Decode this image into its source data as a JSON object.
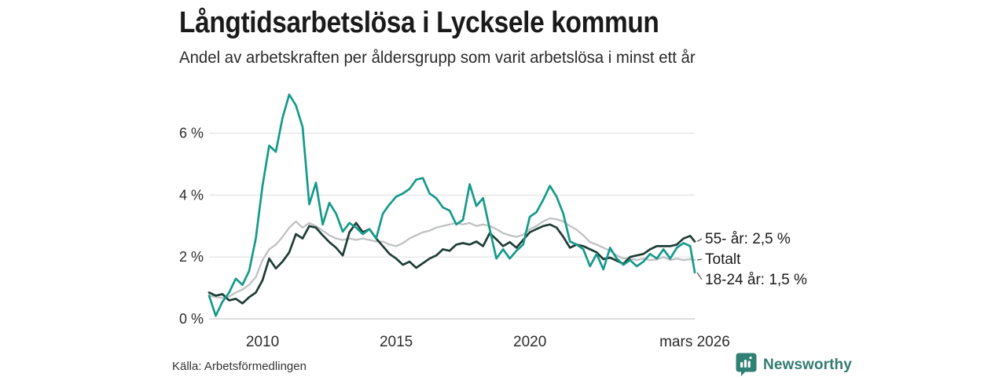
{
  "header": {
    "title": "Långtidsarbetslösa i Lycksele kommun",
    "subtitle": "Andel av arbetskraften per åldersgrupp som varit arbetslösa i minst ett år"
  },
  "footer": {
    "source": "Källa: Arbetsförmedlingen",
    "brand": "Newsworthy"
  },
  "colors": {
    "teal_line": "#159a8a",
    "dark_line": "#1e3d36",
    "gray_line": "#bfc1c3",
    "grid": "#e3e3e3",
    "zero_line": "#c9c9c9",
    "tick_text": "#2b2b2b",
    "label_text": "#1a1a1a",
    "connector": "#404040",
    "brand_teal": "#2f8173"
  },
  "chart_data": {
    "type": "line",
    "x_start": 2008.0,
    "x_step": 0.25,
    "x_end": 2026.17,
    "xlim": [
      2008.0,
      2026.17
    ],
    "ylim": [
      0,
      7.45
    ],
    "grid": true,
    "legend_position": "right-end-labels",
    "y_ticks": [
      {
        "v": 0,
        "label": "0 %"
      },
      {
        "v": 2,
        "label": "2 %"
      },
      {
        "v": 4,
        "label": "4 %"
      },
      {
        "v": 6,
        "label": "6 %"
      }
    ],
    "x_ticks": [
      {
        "v": 2010,
        "label": "2010"
      },
      {
        "v": 2015,
        "label": "2015"
      },
      {
        "v": 2020,
        "label": "2020"
      },
      {
        "v": 2026.17,
        "label": "mars 2026"
      }
    ],
    "series": [
      {
        "name": "Totalt",
        "color_key": "gray_line",
        "end_label": "Totalt",
        "end_value": 1.9,
        "stroke_width": 2.3,
        "values": [
          0.75,
          0.7,
          0.68,
          0.72,
          0.85,
          0.95,
          1.1,
          1.35,
          1.9,
          2.25,
          2.4,
          2.65,
          2.95,
          3.15,
          2.95,
          3.1,
          3.0,
          2.85,
          2.7,
          2.6,
          2.55,
          2.6,
          2.55,
          2.6,
          2.55,
          2.5,
          2.5,
          2.4,
          2.35,
          2.45,
          2.6,
          2.7,
          2.8,
          2.85,
          2.95,
          3.0,
          3.05,
          3.1,
          3.05,
          3.1,
          3.0,
          3.05,
          3.0,
          2.9,
          2.77,
          2.7,
          2.65,
          2.72,
          2.9,
          3.0,
          3.15,
          3.25,
          3.22,
          3.15,
          3.0,
          2.88,
          2.7,
          2.48,
          2.4,
          2.3,
          2.2,
          2.05,
          1.95,
          1.95,
          1.9,
          1.95,
          1.9,
          1.92,
          2.0,
          1.9,
          1.95,
          1.9,
          1.93,
          1.9
        ]
      },
      {
        "name": "55- år",
        "color_key": "dark_line",
        "end_label": "55- år: 2,5 %",
        "end_value": 2.5,
        "stroke_width": 2.7,
        "values": [
          0.85,
          0.75,
          0.8,
          0.6,
          0.65,
          0.5,
          0.7,
          0.85,
          1.25,
          1.95,
          1.63,
          1.85,
          2.15,
          2.74,
          2.6,
          3.0,
          2.95,
          2.7,
          2.48,
          2.3,
          2.05,
          2.8,
          3.1,
          2.8,
          2.9,
          2.6,
          2.35,
          2.1,
          1.95,
          1.75,
          1.85,
          1.65,
          1.8,
          1.95,
          2.05,
          2.25,
          2.2,
          2.4,
          2.45,
          2.4,
          2.5,
          2.35,
          2.77,
          2.57,
          2.35,
          2.48,
          2.3,
          2.55,
          2.8,
          2.9,
          3.0,
          3.05,
          2.95,
          2.65,
          2.3,
          2.4,
          2.35,
          2.25,
          2.15,
          1.93,
          1.98,
          1.88,
          1.78,
          2.0,
          2.05,
          2.1,
          2.25,
          2.35,
          2.35,
          2.35,
          2.4,
          2.6,
          2.68,
          2.5
        ]
      },
      {
        "name": "18-24 år",
        "color_key": "teal_line",
        "end_label": "18-24 år: 1,5 %",
        "end_value": 1.5,
        "stroke_width": 2.7,
        "values": [
          0.75,
          0.1,
          0.55,
          0.85,
          1.3,
          1.1,
          1.55,
          2.6,
          4.3,
          5.6,
          5.4,
          6.5,
          7.25,
          6.9,
          6.2,
          3.7,
          4.4,
          3.05,
          3.75,
          3.4,
          2.82,
          3.1,
          2.95,
          2.74,
          2.9,
          2.6,
          3.4,
          3.7,
          3.95,
          4.05,
          4.2,
          4.5,
          4.55,
          4.05,
          3.9,
          3.6,
          3.5,
          3.05,
          3.2,
          4.35,
          3.65,
          3.9,
          2.9,
          1.95,
          2.25,
          1.95,
          2.2,
          2.4,
          3.3,
          3.45,
          3.85,
          4.3,
          3.95,
          3.4,
          2.5,
          2.4,
          2.25,
          1.7,
          2.1,
          1.6,
          2.3,
          1.95,
          1.75,
          1.9,
          1.7,
          1.85,
          2.1,
          1.95,
          2.25,
          1.95,
          2.3,
          2.45,
          2.35,
          1.5
        ]
      }
    ]
  }
}
